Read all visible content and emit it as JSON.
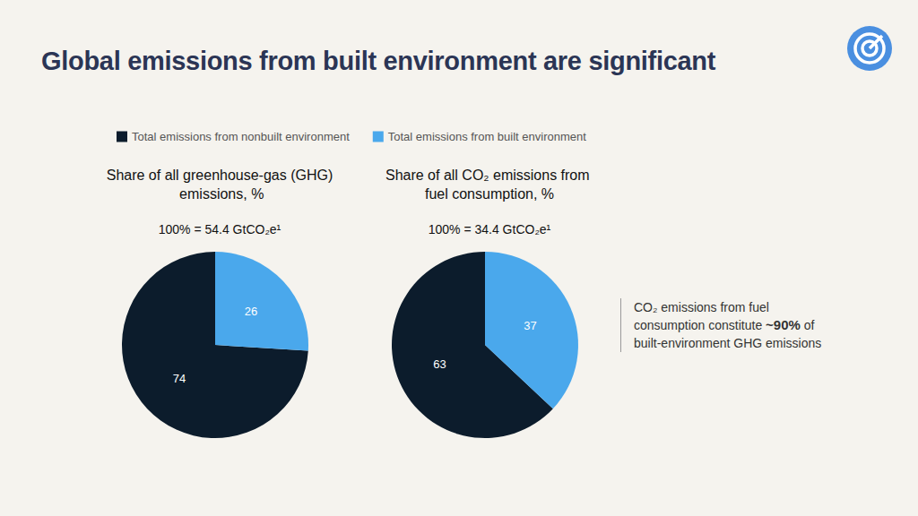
{
  "title": "Global emissions from built environment are significant",
  "chart_data": [
    {
      "type": "pie",
      "title": "Share of all greenhouse-gas (GHG) emissions, %",
      "subtitle": "100% = 54.4 GtCO₂e¹",
      "categories": [
        "Total emissions from nonbuilt environment",
        "Total emissions from built environment"
      ],
      "values": [
        74,
        26
      ],
      "colors": [
        "#0c1c2c",
        "#4aa8ec"
      ],
      "data_labels": true,
      "legend": "top"
    },
    {
      "type": "pie",
      "title": "Share of all CO₂ emissions from fuel consumption, %",
      "subtitle": "100% = 34.4 GtCO₂e¹",
      "categories": [
        "Total emissions from nonbuilt environment",
        "Total emissions from built environment"
      ],
      "values": [
        63,
        37
      ],
      "colors": [
        "#0c1c2c",
        "#4aa8ec"
      ],
      "data_labels": true,
      "legend": "top"
    }
  ],
  "annotation": [
    "CO₂ emissions from fuel consumption constitute",
    "~90%",
    "of built-environment GHG emissions"
  ]
}
